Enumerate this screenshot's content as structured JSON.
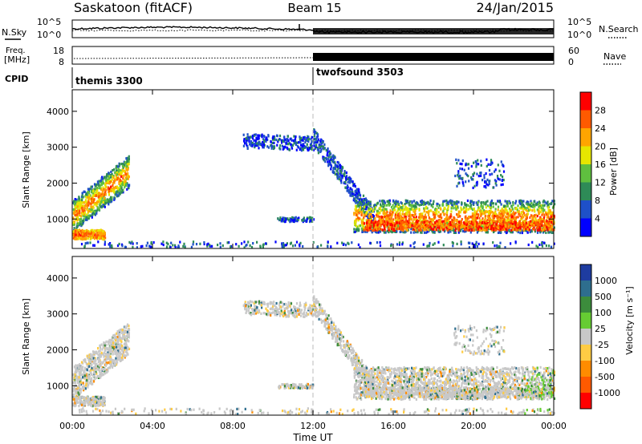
{
  "header": {
    "title": "Saskatoon (fitACF)",
    "beam": "Beam 15",
    "date": "24/Jan/2015"
  },
  "side_labels": {
    "nsky": "N.Sky",
    "freq_line1": "Freq.",
    "freq_line2": "[MHz]",
    "cpid": "CPID",
    "nsearch": "N.Search",
    "nave": "Nave"
  },
  "chart_data": [
    {
      "type": "line",
      "panel": "noise",
      "left_ticks": [
        "10^5",
        "10^0"
      ],
      "right_ticks": [
        "10^5",
        "10^0"
      ],
      "series": [
        {
          "name": "N.Sky",
          "style": "solid"
        },
        {
          "name": "N.Search",
          "style": "dotted"
        }
      ]
    },
    {
      "type": "line",
      "panel": "frequency",
      "left_ticks": [
        "18",
        "8"
      ],
      "right_ticks": [
        "60",
        "0"
      ],
      "series": [
        {
          "name": "Freq.",
          "style": "dotted"
        },
        {
          "name": "Nave",
          "style": "solid"
        }
      ]
    },
    {
      "type": "table",
      "panel": "cpid",
      "modes": [
        {
          "label": "themis 3300",
          "start_hour": 0
        },
        {
          "label": "twofsound 3503",
          "start_hour": 12
        }
      ]
    },
    {
      "type": "heatmap",
      "panel": "power",
      "ylabel": "Slant Range [km]",
      "y_ticks": [
        "1000",
        "2000",
        "3000",
        "4000"
      ],
      "ylim": [
        180,
        4600
      ],
      "xlim": [
        0,
        24
      ],
      "colorbar_label": "Power [dB]",
      "colorbar_ticks": [
        "4",
        "8",
        "12",
        "16",
        "20",
        "24",
        "28"
      ],
      "colors": [
        "#0000ff",
        "#1e50c8",
        "#2e8b57",
        "#5fbf3f",
        "#e6e600",
        "#ffa500",
        "#ff5a00",
        "#ff0000"
      ]
    },
    {
      "type": "heatmap",
      "panel": "velocity",
      "ylabel": "Slant Range [km]",
      "y_ticks": [
        "1000",
        "2000",
        "3000",
        "4000"
      ],
      "ylim": [
        180,
        4600
      ],
      "xlim": [
        0,
        24
      ],
      "colorbar_label": "Velocity [m s⁻¹]",
      "colorbar_ticks": [
        "1000",
        "500",
        "100",
        "25",
        "-25",
        "-100",
        "-500",
        "-1000"
      ],
      "colors": [
        "#1e3ca0",
        "#2e6e8e",
        "#3c8c3c",
        "#66cc33",
        "#c8c8c8",
        "#ffcc44",
        "#ff8c00",
        "#ff5a00",
        "#ff0000"
      ]
    }
  ],
  "time_axis": {
    "label": "Time UT",
    "ticks": [
      "00:00",
      "04:00",
      "08:00",
      "12:00",
      "16:00",
      "20:00",
      "00:00"
    ]
  }
}
